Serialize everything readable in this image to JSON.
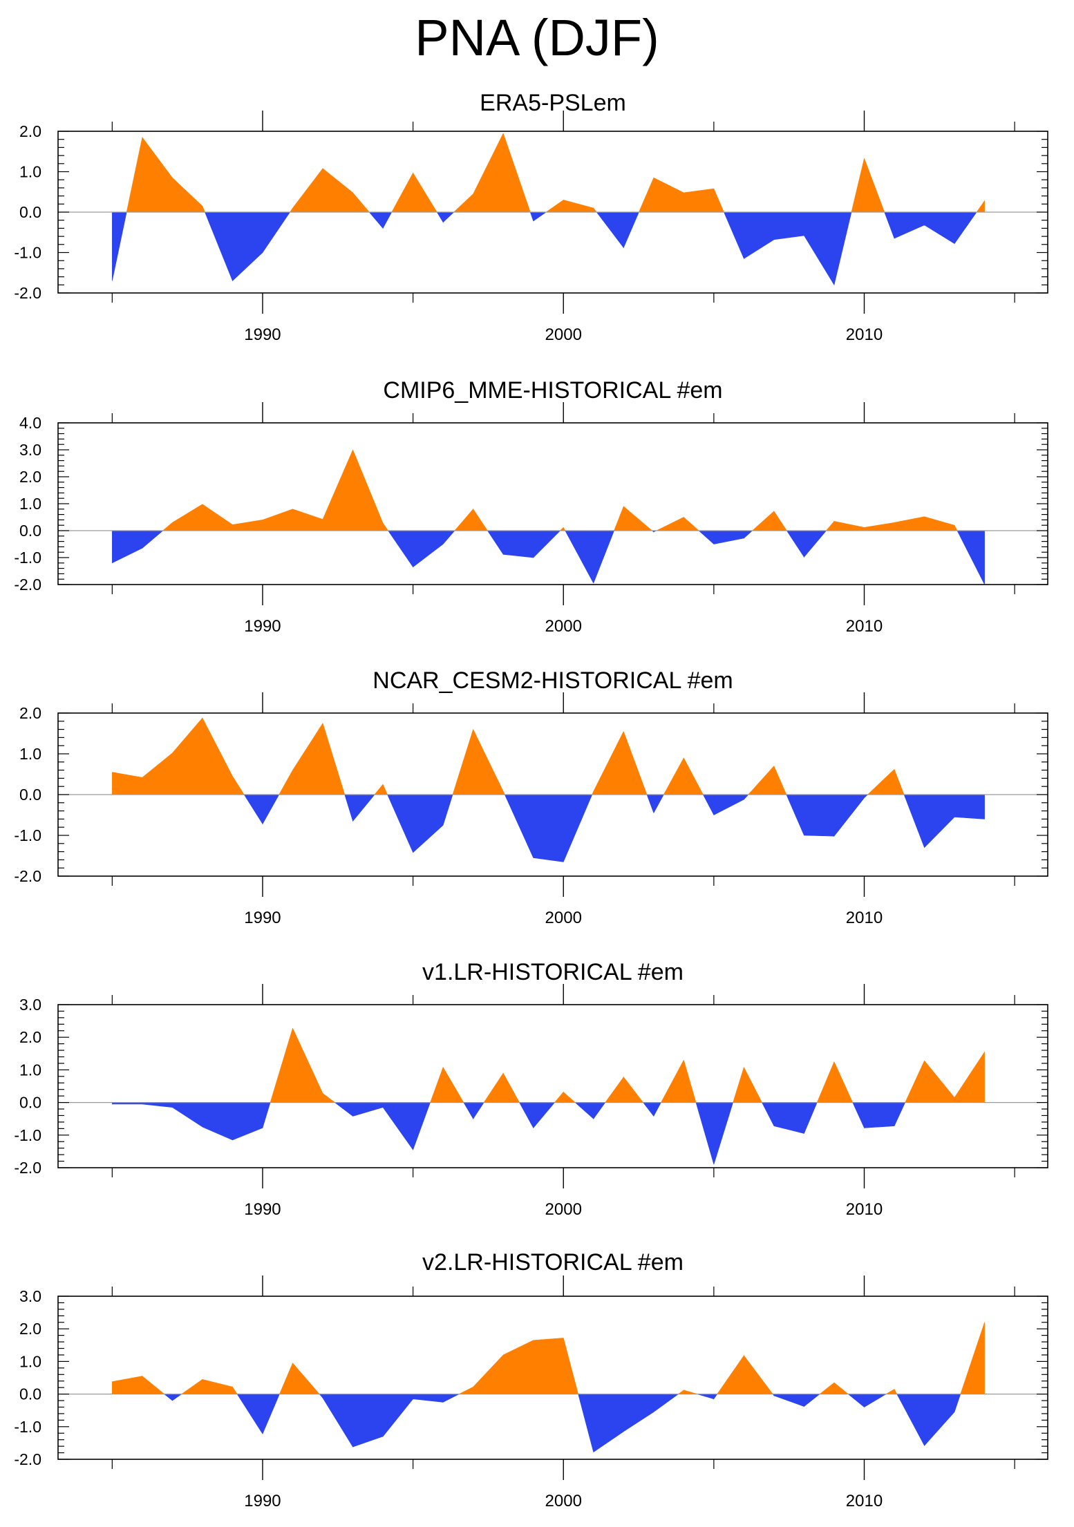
{
  "title": "PNA (DJF)",
  "colors": {
    "positive": "#ff8000",
    "negative": "#2b44f0",
    "axis": "#000000",
    "zero_line": "#9a9a9a"
  },
  "chart_data": [
    {
      "type": "area",
      "title": "ERA5-PSLem",
      "years": [
        1985,
        1986,
        1987,
        1988,
        1989,
        1990,
        1991,
        1992,
        1993,
        1994,
        1995,
        1996,
        1997,
        1998,
        1999,
        2000,
        2001,
        2002,
        2003,
        2004,
        2005,
        2006,
        2007,
        2008,
        2009,
        2010,
        2011,
        2012,
        2013,
        2014
      ],
      "values": [
        -1.7,
        1.85,
        0.85,
        0.15,
        -1.7,
        -1.0,
        0.1,
        1.08,
        0.48,
        -0.4,
        0.97,
        -0.25,
        0.45,
        1.95,
        -0.22,
        0.3,
        0.1,
        -0.88,
        0.85,
        0.48,
        0.58,
        -1.15,
        -0.68,
        -0.58,
        -1.8,
        1.33,
        -0.65,
        -0.32,
        -0.78,
        0.28
      ],
      "ylim": [
        -2.0,
        2.0
      ],
      "yticks": [
        "-2.0",
        "-1.0",
        "0.0",
        "1.0",
        "2.0"
      ],
      "xticks": [
        "1990",
        "2000",
        "2010"
      ]
    },
    {
      "type": "area",
      "title": "CMIP6_MME-HISTORICAL  #em",
      "years": [
        1985,
        1986,
        1987,
        1988,
        1989,
        1990,
        1991,
        1992,
        1993,
        1994,
        1995,
        1996,
        1997,
        1998,
        1999,
        2000,
        2001,
        2002,
        2003,
        2004,
        2005,
        2006,
        2007,
        2008,
        2009,
        2010,
        2011,
        2012,
        2013,
        2014
      ],
      "values": [
        -1.2,
        -0.65,
        0.3,
        0.98,
        0.22,
        0.4,
        0.8,
        0.42,
        3.0,
        0.28,
        -1.35,
        -0.5,
        0.8,
        -0.88,
        -1.0,
        0.12,
        -1.95,
        0.9,
        -0.05,
        0.5,
        -0.5,
        -0.28,
        0.72,
        -0.98,
        0.35,
        0.12,
        0.3,
        0.52,
        0.2,
        -2.0
      ],
      "ylim": [
        -2.0,
        4.0
      ],
      "yticks": [
        "-2.0",
        "-1.0",
        "0.0",
        "1.0",
        "2.0",
        "3.0",
        "4.0"
      ],
      "xticks": [
        "1990",
        "2000",
        "2010"
      ]
    },
    {
      "type": "area",
      "title": "NCAR_CESM2-HISTORICAL  #em",
      "years": [
        1985,
        1986,
        1987,
        1988,
        1989,
        1990,
        1991,
        1992,
        1993,
        1994,
        1995,
        1996,
        1997,
        1998,
        1999,
        2000,
        2001,
        2002,
        2003,
        2004,
        2005,
        2006,
        2007,
        2008,
        2009,
        2010,
        2011,
        2012,
        2013,
        2014
      ],
      "values": [
        0.55,
        0.42,
        1.02,
        1.88,
        0.45,
        -0.72,
        0.6,
        1.75,
        -0.65,
        0.25,
        -1.42,
        -0.75,
        1.6,
        0.08,
        -1.55,
        -1.65,
        0.08,
        1.55,
        -0.45,
        0.9,
        -0.5,
        -0.12,
        0.7,
        -1.0,
        -1.02,
        -0.08,
        0.62,
        -1.3,
        -0.55,
        -0.6
      ],
      "ylim": [
        -2.0,
        2.0
      ],
      "yticks": [
        "-2.0",
        "-1.0",
        "0.0",
        "1.0",
        "2.0"
      ],
      "xticks": [
        "1990",
        "2000",
        "2010"
      ]
    },
    {
      "type": "area",
      "title": "v1.LR-HISTORICAL  #em",
      "years": [
        1985,
        1986,
        1987,
        1988,
        1989,
        1990,
        1991,
        1992,
        1993,
        1994,
        1995,
        1996,
        1997,
        1998,
        1999,
        2000,
        2001,
        2002,
        2003,
        2004,
        2005,
        2006,
        2007,
        2008,
        2009,
        2010,
        2011,
        2012,
        2013,
        2014
      ],
      "values": [
        -0.05,
        -0.05,
        -0.15,
        -0.75,
        -1.15,
        -0.78,
        2.28,
        0.28,
        -0.42,
        -0.15,
        -1.45,
        1.08,
        -0.5,
        0.9,
        -0.78,
        0.32,
        -0.5,
        0.78,
        -0.42,
        1.3,
        -1.9,
        1.08,
        -0.72,
        -0.95,
        1.25,
        -0.78,
        -0.72,
        1.28,
        0.15,
        1.55
      ],
      "ylim": [
        -2.0,
        3.0
      ],
      "yticks": [
        "-2.0",
        "-1.0",
        "0.0",
        "1.0",
        "2.0",
        "3.0"
      ],
      "xticks": [
        "1990",
        "2000",
        "2010"
      ]
    },
    {
      "type": "area",
      "title": "v2.LR-HISTORICAL  #em",
      "years": [
        1985,
        1986,
        1987,
        1988,
        1989,
        1990,
        1991,
        1992,
        1993,
        1994,
        1995,
        1996,
        1997,
        1998,
        1999,
        2000,
        2001,
        2002,
        2003,
        2004,
        2005,
        2006,
        2007,
        2008,
        2009,
        2010,
        2011,
        2012,
        2013,
        2014
      ],
      "values": [
        0.38,
        0.55,
        -0.2,
        0.45,
        0.22,
        -1.22,
        0.95,
        -0.12,
        -1.62,
        -1.3,
        -0.15,
        -0.25,
        0.22,
        1.2,
        1.65,
        1.72,
        -1.78,
        -1.15,
        -0.55,
        0.12,
        -0.15,
        1.18,
        -0.05,
        -0.38,
        0.35,
        -0.4,
        0.15,
        -1.58,
        -0.55,
        2.2
      ],
      "ylim": [
        -2.0,
        3.0
      ],
      "yticks": [
        "-2.0",
        "-1.0",
        "0.0",
        "1.0",
        "2.0",
        "3.0"
      ],
      "xticks": [
        "1990",
        "2000",
        "2010"
      ]
    }
  ]
}
